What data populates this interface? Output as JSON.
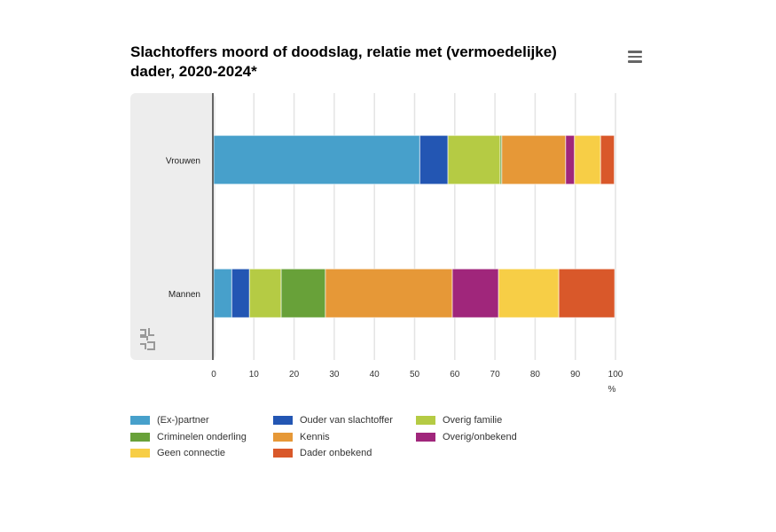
{
  "chart_data": {
    "type": "bar",
    "orientation": "horizontal",
    "stacked": true,
    "title": "Slachtoffers moord of doodslag, relatie met (vermoedelijke) dader, 2020-2024*",
    "categories": [
      "Vrouwen",
      "Mannen"
    ],
    "xlabel": "%",
    "xlim": [
      0,
      100
    ],
    "xticks": [
      0,
      10,
      20,
      30,
      40,
      50,
      60,
      70,
      80,
      90,
      100
    ],
    "grid": true,
    "legend_position": "bottom",
    "series": [
      {
        "name": "(Ex-)partner",
        "color": "#47a0cb",
        "values": [
          51.3,
          4.5
        ]
      },
      {
        "name": "Ouder van slachtoffer",
        "color": "#2356b3",
        "values": [
          7.0,
          4.4
        ]
      },
      {
        "name": "Overig familie",
        "color": "#b5cb44",
        "values": [
          13.0,
          7.9
        ]
      },
      {
        "name": "Criminelen onderling",
        "color": "#68a139",
        "values": [
          0.4,
          11.0
        ]
      },
      {
        "name": "Kennis",
        "color": "#e69837",
        "values": [
          15.9,
          31.6
        ]
      },
      {
        "name": "Overig/onbekend",
        "color": "#a0267b",
        "values": [
          2.2,
          11.5
        ]
      },
      {
        "name": "Geen connectie",
        "color": "#f7ce46",
        "values": [
          6.5,
          15.0
        ]
      },
      {
        "name": "Dader onbekend",
        "color": "#d9582a",
        "values": [
          3.4,
          13.9
        ]
      }
    ]
  },
  "menu_icon": "hamburger-menu-icon",
  "logo": "cbs-logo"
}
